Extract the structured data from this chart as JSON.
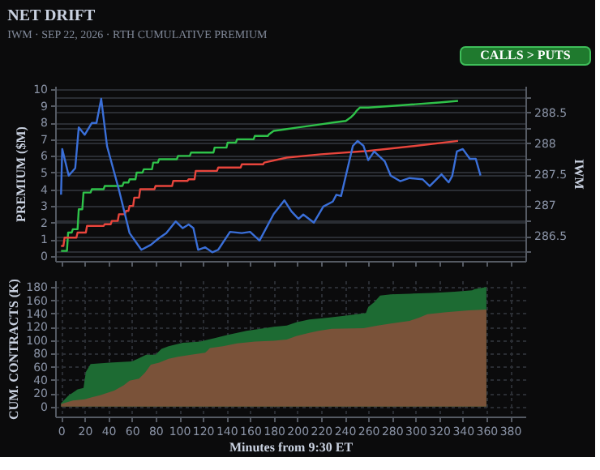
{
  "chart_data": [
    {
      "type": "line",
      "title": "NET DRIFT",
      "subtitle": "IWM · SEP 22, 2026 · RTH CUMULATIVE PREMIUM",
      "annotations": [
        "CALLS > PUTS"
      ],
      "ylabel": "PREMIUM ($M)",
      "y2label": "IWM",
      "xlim": [
        -5,
        393
      ],
      "xticks": [
        0,
        20,
        40,
        60,
        80,
        100,
        120,
        140,
        160,
        180,
        200,
        220,
        240,
        260,
        280,
        300,
        320,
        340,
        360,
        380
      ],
      "ylim": [
        -0.3,
        10.2
      ],
      "yticks": [
        0,
        1,
        2,
        3,
        4,
        5,
        6,
        7,
        8,
        9,
        10
      ],
      "y2lim": [
        286.1,
        288.93
      ],
      "y2ticks": [
        {
          "value": 286.25,
          "label": null
        },
        286.5,
        {
          "value": 286.75,
          "label": null
        },
        287,
        {
          "value": 287.25,
          "label": null
        },
        287.5,
        {
          "value": 287.75,
          "label": null
        },
        288,
        {
          "value": 288.25,
          "label": null
        },
        288.5,
        {
          "value": 288.75,
          "label": null
        }
      ],
      "grid": "y",
      "tick_labels": "y",
      "series": [
        {
          "color": "#2fc24a",
          "x": [
            0,
            5,
            6,
            9,
            10,
            14,
            15,
            18,
            19,
            25,
            26,
            36,
            37,
            52,
            53,
            57,
            58,
            63,
            64,
            69,
            70,
            77,
            78,
            82,
            83,
            98,
            99,
            109,
            110,
            129,
            130,
            140,
            141,
            148,
            149,
            163,
            164,
            175,
            176,
            180,
            190,
            200,
            210,
            220,
            230,
            241,
            245,
            248,
            250,
            253,
            260,
            280,
            300,
            320,
            336
          ],
          "values": [
            0.3,
            0.3,
            1.4,
            1.4,
            1.6,
            1.6,
            2.8,
            2.8,
            3.8,
            3.8,
            4.0,
            4.0,
            4.2,
            4.2,
            4.4,
            4.4,
            4.6,
            4.6,
            5.0,
            5.0,
            5.2,
            5.2,
            5.6,
            5.6,
            5.8,
            5.8,
            6.0,
            6.0,
            6.2,
            6.2,
            6.5,
            6.5,
            6.8,
            6.8,
            7.0,
            7.0,
            7.2,
            7.2,
            7.3,
            7.5,
            7.6,
            7.7,
            7.8,
            7.9,
            8.0,
            8.1,
            8.3,
            8.5,
            8.7,
            8.9,
            8.9,
            9.0,
            9.1,
            9.2,
            9.3
          ]
        },
        {
          "color": "#e8453c",
          "x": [
            0,
            2,
            3,
            13,
            14,
            21,
            22,
            36,
            37,
            42,
            43,
            48,
            49,
            54,
            55,
            57,
            58,
            61,
            62,
            66,
            67,
            79,
            80,
            94,
            95,
            107,
            108,
            113,
            114,
            132,
            133,
            152,
            153,
            171,
            172,
            191,
            220,
            260,
            300,
            336
          ],
          "values": [
            0.6,
            0.6,
            1.1,
            1.1,
            1.4,
            1.4,
            1.8,
            1.8,
            1.9,
            1.9,
            2.1,
            2.1,
            2.5,
            2.5,
            2.7,
            2.7,
            3.0,
            3.0,
            3.5,
            3.5,
            4.0,
            4.0,
            4.2,
            4.2,
            4.5,
            4.5,
            4.6,
            4.6,
            5.1,
            5.1,
            5.3,
            5.3,
            5.5,
            5.5,
            5.6,
            5.9,
            6.1,
            6.3,
            6.6,
            6.9
          ]
        },
        {
          "color": "#3a6fd8",
          "axis": "y2",
          "x": [
            0,
            1,
            6.5,
            12,
            15,
            20,
            26,
            30,
            34,
            39,
            49,
            58,
            68,
            76,
            83,
            89,
            97,
            103,
            108,
            112,
            116,
            122,
            128,
            133,
            143,
            153,
            160,
            168,
            180,
            185,
            189,
            195,
            201,
            205,
            214,
            222,
            230,
            233,
            237,
            247,
            251,
            256,
            260,
            265,
            274,
            279,
            287,
            295,
            306,
            312,
            322,
            328,
            331,
            335,
            340,
            346,
            351,
            355
          ],
          "values": [
            287.17,
            287.91,
            287.48,
            287.6,
            288.26,
            288.14,
            288.33,
            288.33,
            288.72,
            287.95,
            287.25,
            286.55,
            286.28,
            286.36,
            286.47,
            286.55,
            286.74,
            286.63,
            286.69,
            286.63,
            286.28,
            286.32,
            286.24,
            286.28,
            286.57,
            286.55,
            286.57,
            286.43,
            286.86,
            286.98,
            287.08,
            286.9,
            286.78,
            286.85,
            286.72,
            286.98,
            287.06,
            287.17,
            287.15,
            287.96,
            288.04,
            287.96,
            287.73,
            287.87,
            287.71,
            287.48,
            287.39,
            287.44,
            287.42,
            287.31,
            287.5,
            287.37,
            287.47,
            287.87,
            287.91,
            287.75,
            287.75,
            287.48
          ]
        }
      ]
    },
    {
      "type": "area",
      "xlabel": "Minutes from 9:30 ET",
      "ylabel": "CUM. CONTRACTS (K)",
      "xlim": [
        -5,
        393
      ],
      "xticks": [
        0,
        20,
        40,
        60,
        80,
        100,
        120,
        140,
        160,
        180,
        200,
        220,
        240,
        260,
        280,
        300,
        320,
        340,
        360,
        380
      ],
      "ylim": [
        -15,
        190
      ],
      "yticks": [
        0,
        20,
        40,
        60,
        80,
        100,
        120,
        140,
        160,
        180
      ],
      "grid": true,
      "series": [
        {
          "color": "#1d6b33",
          "x": [
            0,
            6,
            10,
            14,
            19,
            21,
            25,
            41,
            60,
            66,
            72,
            80,
            85,
            91,
            103,
            118,
            130,
            141,
            157,
            172,
            180,
            191,
            199,
            210,
            226,
            241,
            258,
            260,
            265,
            270,
            279,
            295,
            314,
            333,
            348,
            350,
            360
          ],
          "values": [
            5,
            16,
            21,
            26,
            28,
            52,
            64,
            66,
            68,
            73,
            78,
            78,
            87,
            91,
            96,
            98,
            103,
            108,
            114,
            118,
            120,
            122,
            127,
            131,
            134,
            137,
            141,
            150,
            157,
            167,
            169,
            170,
            171,
            173,
            175,
            177,
            180
          ]
        },
        {
          "color": "#7a5239",
          "x": [
            0,
            10,
            20,
            26,
            33,
            45,
            53,
            58,
            66,
            71,
            76,
            83,
            91,
            99,
            110,
            122,
            126,
            137,
            149,
            164,
            180,
            191,
            199,
            210,
            218,
            229,
            256,
            268,
            279,
            295,
            303,
            310,
            326,
            345,
            360
          ],
          "values": [
            4,
            9,
            11,
            14,
            17,
            24,
            32,
            39,
            42,
            51,
            63,
            66,
            72,
            75,
            78,
            81,
            88,
            91,
            95,
            98,
            99,
            101,
            106,
            111,
            114,
            117,
            118,
            122,
            125,
            129,
            134,
            139,
            142,
            145,
            146
          ]
        }
      ]
    }
  ]
}
